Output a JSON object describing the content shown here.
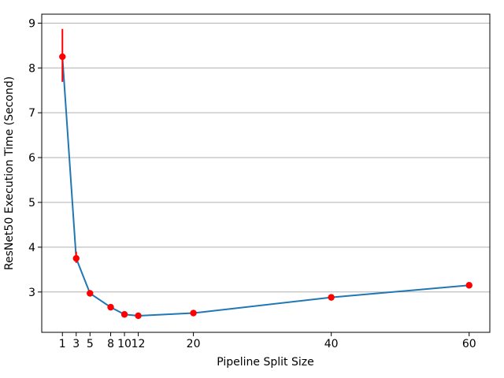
{
  "chart_data": {
    "type": "line",
    "title": "",
    "xlabel": "Pipeline Split Size",
    "ylabel": "ResNet50 Execution Time (Second)",
    "x": [
      1,
      3,
      5,
      8,
      10,
      12,
      20,
      40,
      60
    ],
    "y": [
      8.25,
      3.75,
      2.97,
      2.66,
      2.5,
      2.47,
      2.53,
      2.88,
      3.15
    ],
    "error_bars": [
      {
        "x": 1,
        "y_low": 7.69,
        "y_high": 8.87
      },
      {
        "x": 3,
        "y_low": 3.65,
        "y_high": 3.9
      }
    ],
    "x_ticks": [
      1,
      3,
      5,
      8,
      10,
      12,
      20,
      40,
      60
    ],
    "y_ticks": [
      3,
      4,
      5,
      6,
      7,
      8,
      9
    ],
    "xlim": [
      -2,
      63
    ],
    "ylim": [
      2.1,
      9.2
    ],
    "grid": "horizontal-only",
    "legend": "none",
    "colors": {
      "line": "#1f77b4",
      "marker": "#ff0000",
      "error_bar": "#ff0000",
      "grid": "#b0b0b0",
      "spine": "#000000",
      "background": "#ffffff"
    }
  }
}
